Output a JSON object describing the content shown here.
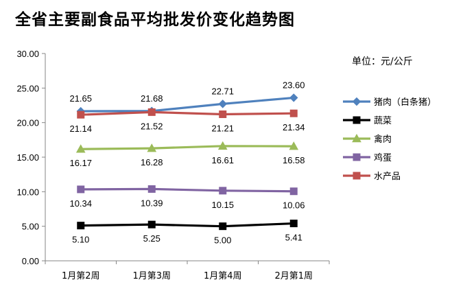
{
  "chart_data": {
    "type": "line",
    "title": "全省主要副食品平均批发价变化趋势图",
    "unit": "单位：元/公斤",
    "categories": [
      "1月第2周",
      "1月第3周",
      "1月第4周",
      "2月第1周"
    ],
    "ylim": [
      0,
      30
    ],
    "yticks": [
      "0.00",
      "5.00",
      "10.00",
      "15.00",
      "20.00",
      "25.00",
      "30.00"
    ],
    "grid": false,
    "legend_position": "right",
    "series": [
      {
        "name": "猪肉（白条猪）",
        "values": [
          21.65,
          21.68,
          22.71,
          23.6
        ],
        "labels": [
          "21.65",
          "21.68",
          "22.71",
          "23.60"
        ],
        "color": "#4F81BD",
        "marker": "diamond",
        "label_pos": "above"
      },
      {
        "name": "蔬菜",
        "values": [
          5.1,
          5.25,
          5.0,
          5.41
        ],
        "labels": [
          "5.10",
          "5.25",
          "5.00",
          "5.41"
        ],
        "color": "#000000",
        "marker": "square",
        "label_pos": "below"
      },
      {
        "name": "禽肉",
        "values": [
          16.17,
          16.28,
          16.61,
          16.58
        ],
        "labels": [
          "16.17",
          "16.28",
          "16.61",
          "16.58"
        ],
        "color": "#9BBB59",
        "marker": "triangle",
        "label_pos": "below"
      },
      {
        "name": "鸡蛋",
        "values": [
          10.34,
          10.39,
          10.15,
          10.06
        ],
        "labels": [
          "10.34",
          "10.39",
          "10.15",
          "10.06"
        ],
        "color": "#8064A2",
        "marker": "square",
        "label_pos": "below"
      },
      {
        "name": "水产品",
        "values": [
          21.14,
          21.52,
          21.21,
          21.34
        ],
        "labels": [
          "21.14",
          "21.52",
          "21.21",
          "21.34"
        ],
        "color": "#C0504D",
        "marker": "square",
        "label_pos": "below"
      }
    ]
  }
}
